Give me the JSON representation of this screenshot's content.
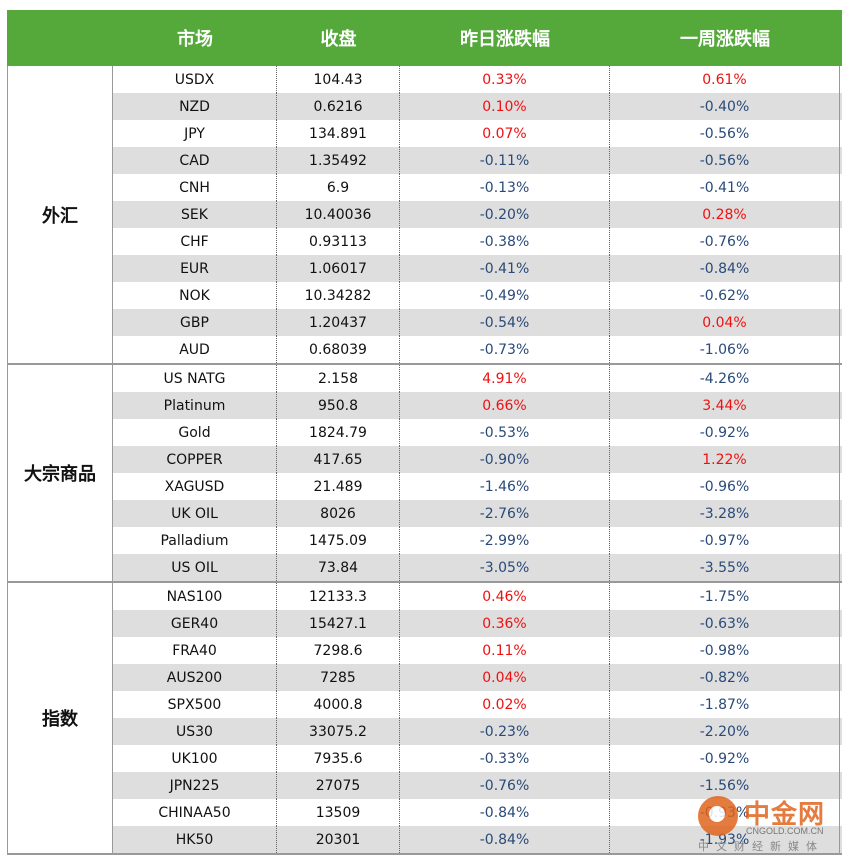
{
  "header": {
    "col_market": "市场",
    "col_close": "收盘",
    "col_day": "昨日涨跌幅",
    "col_week": "一周涨跌幅"
  },
  "colors": {
    "header_bg": "#54a93a",
    "positive": "#ee1111",
    "negative": "#2a4a78",
    "alt_row": "#dedede"
  },
  "groups": [
    {
      "name": "外汇",
      "rows": [
        {
          "market": "USDX",
          "close": "104.43",
          "day": "0.33%",
          "week": "0.61%"
        },
        {
          "market": "NZD",
          "close": "0.6216",
          "day": "0.10%",
          "week": "-0.40%"
        },
        {
          "market": "JPY",
          "close": "134.891",
          "day": "0.07%",
          "week": "-0.56%"
        },
        {
          "market": "CAD",
          "close": "1.35492",
          "day": "-0.11%",
          "week": "-0.56%"
        },
        {
          "market": "CNH",
          "close": "6.9",
          "day": "-0.13%",
          "week": "-0.41%"
        },
        {
          "market": "SEK",
          "close": "10.40036",
          "day": "-0.20%",
          "week": "0.28%"
        },
        {
          "market": "CHF",
          "close": "0.93113",
          "day": "-0.38%",
          "week": "-0.76%"
        },
        {
          "market": "EUR",
          "close": "1.06017",
          "day": "-0.41%",
          "week": "-0.84%"
        },
        {
          "market": "NOK",
          "close": "10.34282",
          "day": "-0.49%",
          "week": "-0.62%"
        },
        {
          "market": "GBP",
          "close": "1.20437",
          "day": "-0.54%",
          "week": "0.04%"
        },
        {
          "market": "AUD",
          "close": "0.68039",
          "day": "-0.73%",
          "week": "-1.06%"
        }
      ]
    },
    {
      "name": "大宗商品",
      "rows": [
        {
          "market": "US NATG",
          "close": "2.158",
          "day": "4.91%",
          "week": "-4.26%"
        },
        {
          "market": "Platinum",
          "close": "950.8",
          "day": "0.66%",
          "week": "3.44%"
        },
        {
          "market": "Gold",
          "close": "1824.79",
          "day": "-0.53%",
          "week": "-0.92%"
        },
        {
          "market": "COPPER",
          "close": "417.65",
          "day": "-0.90%",
          "week": "1.22%"
        },
        {
          "market": "XAGUSD",
          "close": "21.489",
          "day": "-1.46%",
          "week": "-0.96%"
        },
        {
          "market": "UK OIL",
          "close": "8026",
          "day": "-2.76%",
          "week": "-3.28%"
        },
        {
          "market": "Palladium",
          "close": "1475.09",
          "day": "-2.99%",
          "week": "-0.97%"
        },
        {
          "market": "US OIL",
          "close": "73.84",
          "day": "-3.05%",
          "week": "-3.55%"
        }
      ]
    },
    {
      "name": "指数",
      "rows": [
        {
          "market": "NAS100",
          "close": "12133.3",
          "day": "0.46%",
          "week": "-1.75%"
        },
        {
          "market": "GER40",
          "close": "15427.1",
          "day": "0.36%",
          "week": "-0.63%"
        },
        {
          "market": "FRA40",
          "close": "7298.6",
          "day": "0.11%",
          "week": "-0.98%"
        },
        {
          "market": "AUS200",
          "close": "7285",
          "day": "0.04%",
          "week": "-0.82%"
        },
        {
          "market": "SPX500",
          "close": "4000.8",
          "day": "0.02%",
          "week": "-1.87%"
        },
        {
          "market": "US30",
          "close": "33075.2",
          "day": "-0.23%",
          "week": "-2.20%"
        },
        {
          "market": "UK100",
          "close": "7935.6",
          "day": "-0.33%",
          "week": "-0.92%"
        },
        {
          "market": "JPN225",
          "close": "27075",
          "day": "-0.76%",
          "week": "-1.56%"
        },
        {
          "market": "CHINAA50",
          "close": "13509",
          "day": "-0.84%",
          "week": "-0.93%"
        },
        {
          "market": "HK50",
          "close": "20301",
          "day": "-0.84%",
          "week": "-1.93%"
        }
      ]
    }
  ],
  "watermark": {
    "title": "中金网",
    "url": "CNGOLD.COM.CN",
    "tagline": "中文财经新媒体",
    "icon": "cngold-logo-icon"
  }
}
